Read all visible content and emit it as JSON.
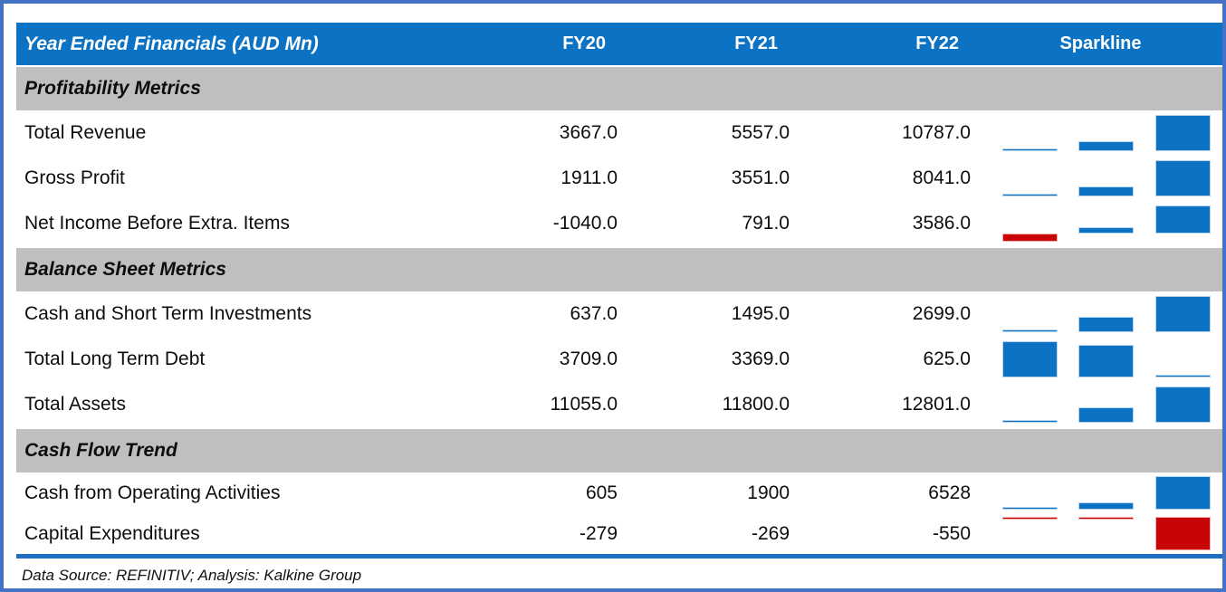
{
  "colors": {
    "header_bg": "#0c72c4",
    "header_text": "#ffffff",
    "section_band_bg": "#bfbfbf",
    "outer_border": "#4472c4",
    "bottom_rule": "#1c6fc0",
    "sparkline_positive": "#0c72c4",
    "sparkline_negative": "#c70509",
    "body_text": "#0d0d0d"
  },
  "footer": {
    "text": "Data Source: REFINITIV; Analysis: Kalkine Group"
  },
  "chart_data": {
    "type": "table",
    "title": "Year Ended Financials (AUD Mn)",
    "columns": [
      "FY20",
      "FY21",
      "FY22"
    ],
    "sparkline_column": "Sparkline",
    "sparkline_style": {
      "type": "bar",
      "scaling": "per-row min-max",
      "positive_color": "#0c72c4",
      "negative_color": "#c70509"
    },
    "sections": [
      {
        "title": "Profitability Metrics",
        "rows": [
          {
            "label": "Total Revenue",
            "values": [
              3667.0,
              5557.0,
              10787.0
            ],
            "display": [
              "3667.0",
              "5557.0",
              "10787.0"
            ]
          },
          {
            "label": "Gross Profit",
            "values": [
              1911.0,
              3551.0,
              8041.0
            ],
            "display": [
              "1911.0",
              "3551.0",
              "8041.0"
            ]
          },
          {
            "label": "Net Income Before Extra. Items",
            "values": [
              -1040.0,
              791.0,
              3586.0
            ],
            "display": [
              "-1040.0",
              "791.0",
              "3586.0"
            ]
          }
        ]
      },
      {
        "title": "Balance Sheet Metrics",
        "rows": [
          {
            "label": "Cash and Short Term Investments",
            "values": [
              637.0,
              1495.0,
              2699.0
            ],
            "display": [
              "637.0",
              "1495.0",
              "2699.0"
            ]
          },
          {
            "label": "Total Long Term Debt",
            "values": [
              3709.0,
              3369.0,
              625.0
            ],
            "display": [
              "3709.0",
              "3369.0",
              "625.0"
            ]
          },
          {
            "label": "Total Assets",
            "values": [
              11055.0,
              11800.0,
              12801.0
            ],
            "display": [
              "11055.0",
              "11800.0",
              "12801.0"
            ]
          }
        ]
      },
      {
        "title": "Cash Flow Trend",
        "rows": [
          {
            "label": "Cash from Operating Activities",
            "values": [
              605,
              1900,
              6528
            ],
            "display": [
              "605",
              "1900",
              "6528"
            ]
          },
          {
            "label": "Capital Expenditures",
            "values": [
              -279,
              -269,
              -550
            ],
            "display": [
              "-279",
              "-269",
              "-550"
            ]
          }
        ]
      }
    ]
  }
}
